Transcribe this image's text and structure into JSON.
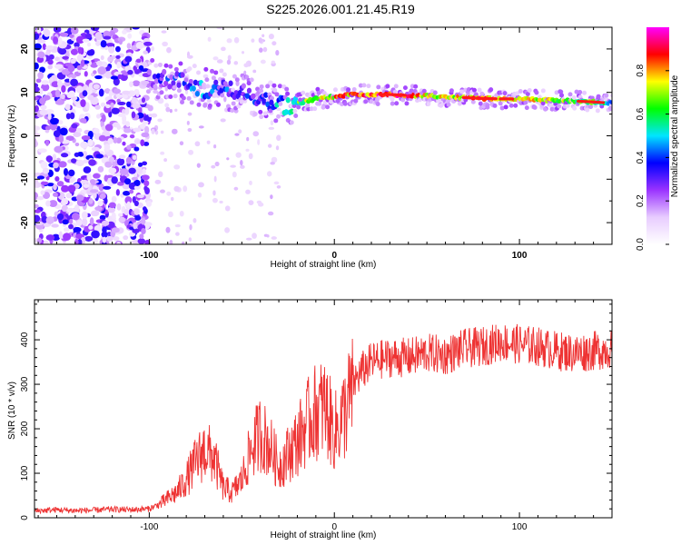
{
  "title": "S225.2026.001.21.45.R19",
  "chart_data": [
    {
      "type": "heatmap",
      "name": "spectrogram",
      "xlabel": "Height of straight line (km)",
      "ylabel": "Frequency (Hz)",
      "xlim": [
        -162,
        150
      ],
      "ylim": [
        -25,
        25
      ],
      "x_ticks": [
        -100,
        0,
        100
      ],
      "y_ticks": [
        -20,
        -10,
        0,
        10,
        20
      ],
      "colorbar": {
        "label": "Normalized spectral amplitude",
        "range": [
          0,
          1
        ],
        "ticks": [
          0.0,
          0.2,
          0.4,
          0.6,
          0.8
        ],
        "tick_labels": [
          "0.0",
          "0.2",
          "0.4",
          "0.6",
          "0.8"
        ],
        "colors": [
          "#ffffff",
          "#e8ccff",
          "#9a33ff",
          "#0000ff",
          "#00e5ff",
          "#00ff00",
          "#ffff00",
          "#ff0000",
          "#ff00ff"
        ]
      },
      "ridge": {
        "x": [
          -100,
          -90,
          -80,
          -70,
          -60,
          -50,
          -40,
          -30,
          -20,
          -10,
          0,
          10,
          20,
          30,
          40,
          50,
          60,
          70,
          80,
          90,
          100,
          110,
          120,
          130,
          140,
          150
        ],
        "frequency": [
          13,
          13,
          12,
          11,
          10.5,
          10,
          8,
          7,
          7.5,
          8.5,
          9,
          9.5,
          9.5,
          9.5,
          9.3,
          9.2,
          9,
          8.8,
          8.6,
          8.5,
          8.5,
          8.3,
          8.1,
          8,
          7.8,
          7.5
        ],
        "amplitude": [
          0.2,
          0.3,
          0.35,
          0.4,
          0.35,
          0.3,
          0.3,
          0.45,
          0.6,
          0.7,
          0.75,
          0.8,
          0.85,
          0.9,
          0.85,
          0.75,
          0.7,
          0.8,
          0.85,
          0.8,
          0.75,
          0.7,
          0.7,
          0.65,
          0.6,
          0.5
        ]
      }
    },
    {
      "type": "line",
      "name": "snr",
      "xlabel": "Height of straight line (km)",
      "ylabel": "SNR (10 * v/v)",
      "xlim": [
        -162,
        150
      ],
      "ylim": [
        0,
        490
      ],
      "x_ticks": [
        -100,
        0,
        100
      ],
      "y_ticks": [
        0,
        100,
        200,
        300,
        400
      ],
      "color": "#ee3333",
      "series": [
        {
          "name": "SNR",
          "x": [
            -162,
            -150,
            -140,
            -130,
            -120,
            -110,
            -100,
            -95,
            -90,
            -85,
            -80,
            -75,
            -70,
            -65,
            -60,
            -55,
            -50,
            -45,
            -40,
            -35,
            -30,
            -25,
            -20,
            -15,
            -10,
            -5,
            0,
            5,
            10,
            15,
            20,
            25,
            30,
            40,
            50,
            60,
            70,
            80,
            90,
            100,
            110,
            120,
            130,
            140,
            150
          ],
          "y": [
            15,
            18,
            16,
            17,
            19,
            18,
            20,
            30,
            45,
            60,
            90,
            130,
            160,
            140,
            70,
            60,
            90,
            160,
            200,
            170,
            120,
            150,
            180,
            220,
            250,
            260,
            200,
            240,
            300,
            330,
            350,
            355,
            360,
            360,
            370,
            365,
            380,
            385,
            395,
            390,
            385,
            375,
            370,
            375,
            380
          ]
        }
      ]
    }
  ]
}
